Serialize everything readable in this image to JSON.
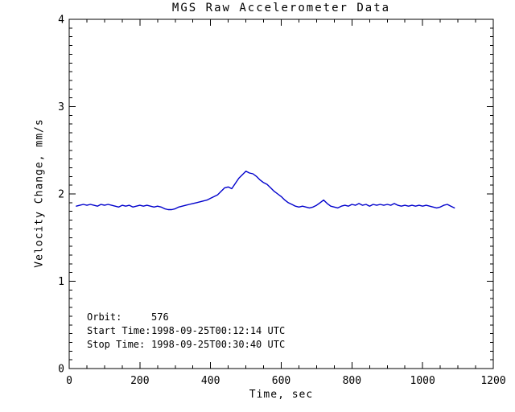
{
  "window": {
    "background": "#ffffff",
    "foreground": "#000000"
  },
  "chart_data": {
    "type": "line",
    "title": "MGS Raw Accelerometer Data",
    "xlabel": "Time, sec",
    "ylabel": "Velocity Change, mm/s",
    "xlim": [
      0,
      1200
    ],
    "ylim": [
      0,
      4
    ],
    "x_major_ticks": [
      0,
      200,
      400,
      600,
      800,
      1000,
      1200
    ],
    "x_minor_step": 50,
    "y_major_ticks": [
      0,
      1,
      2,
      3,
      4
    ],
    "y_minor_step": 0.1,
    "grid": false,
    "legend": "none",
    "axis_color": "#000000",
    "line_color": "#0000cc",
    "series": [
      {
        "name": "Velocity Change",
        "x": [
          20,
          30,
          40,
          50,
          60,
          70,
          80,
          90,
          100,
          110,
          120,
          130,
          140,
          150,
          160,
          170,
          180,
          190,
          200,
          210,
          220,
          230,
          240,
          250,
          260,
          270,
          280,
          290,
          300,
          310,
          320,
          330,
          340,
          350,
          360,
          370,
          380,
          390,
          400,
          410,
          420,
          430,
          440,
          450,
          460,
          470,
          480,
          490,
          500,
          510,
          520,
          530,
          540,
          550,
          560,
          570,
          580,
          590,
          600,
          610,
          620,
          630,
          640,
          650,
          660,
          670,
          680,
          690,
          700,
          710,
          720,
          730,
          740,
          750,
          760,
          770,
          780,
          790,
          800,
          810,
          820,
          830,
          840,
          850,
          860,
          870,
          880,
          890,
          900,
          910,
          920,
          930,
          940,
          950,
          960,
          970,
          980,
          990,
          1000,
          1010,
          1020,
          1030,
          1040,
          1050,
          1060,
          1070,
          1080,
          1090
        ],
        "y": [
          1.86,
          1.87,
          1.88,
          1.87,
          1.88,
          1.87,
          1.86,
          1.88,
          1.87,
          1.88,
          1.87,
          1.86,
          1.85,
          1.87,
          1.86,
          1.87,
          1.85,
          1.86,
          1.87,
          1.86,
          1.87,
          1.86,
          1.85,
          1.86,
          1.85,
          1.83,
          1.82,
          1.82,
          1.83,
          1.85,
          1.86,
          1.87,
          1.88,
          1.89,
          1.9,
          1.91,
          1.92,
          1.93,
          1.95,
          1.97,
          1.99,
          2.03,
          2.07,
          2.08,
          2.06,
          2.12,
          2.18,
          2.22,
          2.26,
          2.24,
          2.23,
          2.2,
          2.16,
          2.13,
          2.11,
          2.07,
          2.03,
          2.0,
          1.97,
          1.93,
          1.9,
          1.88,
          1.86,
          1.85,
          1.86,
          1.85,
          1.84,
          1.85,
          1.87,
          1.9,
          1.93,
          1.89,
          1.86,
          1.85,
          1.84,
          1.86,
          1.87,
          1.86,
          1.88,
          1.87,
          1.89,
          1.87,
          1.88,
          1.86,
          1.88,
          1.87,
          1.88,
          1.87,
          1.88,
          1.87,
          1.89,
          1.87,
          1.86,
          1.87,
          1.86,
          1.87,
          1.86,
          1.87,
          1.86,
          1.87,
          1.86,
          1.85,
          1.84,
          1.85,
          1.87,
          1.88,
          1.86,
          1.84
        ]
      }
    ]
  },
  "annotations": {
    "orbit_label": "Orbit:",
    "orbit_value": "576",
    "start_label": "Start Time:",
    "start_value": "1998-09-25T00:12:14 UTC",
    "stop_label": "Stop Time:",
    "stop_value": "1998-09-25T00:30:40 UTC"
  }
}
